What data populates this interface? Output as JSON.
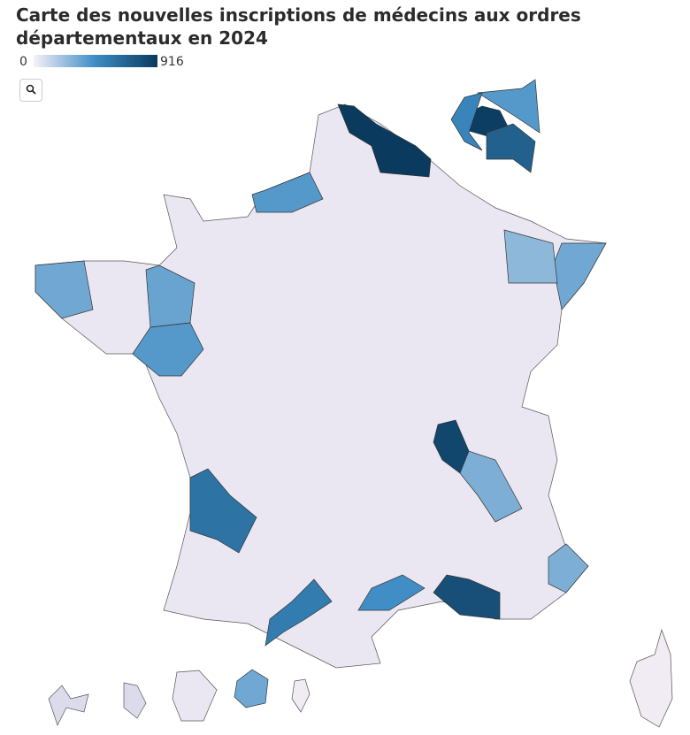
{
  "title": "Carte des nouvelles inscriptions de médecins aux ordres départementaux en 2024",
  "legend": {
    "min": 0,
    "max": 916,
    "colors": [
      "#f7f1f8",
      "#3d8cc4",
      "#0a3a5e"
    ]
  },
  "regions": {
    "values": [
      916,
      400,
      900,
      700,
      500,
      850,
      800,
      600,
      550,
      450,
      400,
      330,
      350,
      400,
      330,
      300,
      300,
      260,
      330
    ]
  }
}
